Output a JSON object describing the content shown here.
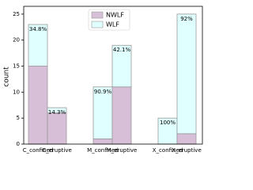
{
  "chart_data": {
    "type": "stacked_bar",
    "y_label": "count",
    "categories": [
      "C_confined",
      "C_eruptive",
      "M_confined",
      "M_eruptive",
      "X_confined",
      "X_eruptive"
    ],
    "series": [
      {
        "name": "NWLF",
        "color": "#d8bfd8",
        "values": [
          15,
          6,
          1,
          11,
          0,
          2
        ]
      },
      {
        "name": "WLF",
        "color": "#e0ffff",
        "values": [
          8,
          1,
          10,
          8,
          5,
          23
        ]
      }
    ],
    "percent_labels": [
      "34.8%",
      "14.3%",
      "90.9%",
      "42.1%",
      "100%",
      "92%"
    ],
    "ylim": [
      0,
      26.5
    ],
    "yticks": [
      0,
      5,
      10,
      15,
      20,
      25
    ],
    "legend": "upper center"
  }
}
